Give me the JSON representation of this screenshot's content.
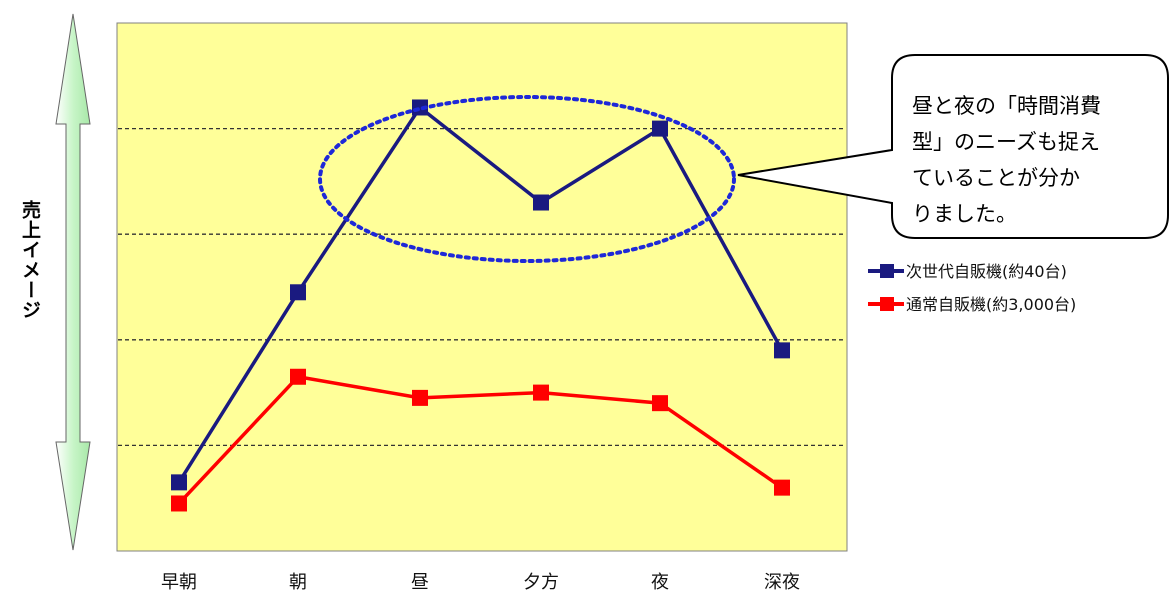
{
  "chart_data": {
    "type": "line",
    "categories": [
      "早朝",
      "朝",
      "昼",
      "夕方",
      "夜",
      "深夜"
    ],
    "series": [
      {
        "name": "次世代自販機(約40台)",
        "color": "#1a1a80",
        "values": [
          1.3,
          4.9,
          8.4,
          6.6,
          8.0,
          3.8
        ]
      },
      {
        "name": "通常自販機(約3,000台)",
        "color": "#ff0000",
        "values": [
          0.9,
          3.3,
          2.9,
          3.0,
          2.8,
          1.2
        ]
      }
    ],
    "ylabel": "売上イメージ",
    "ylim": [
      0,
      10
    ],
    "grid": true,
    "plot_background": "#ffff99",
    "legend_position": "right",
    "annotation": {
      "lines": [
        "昼と夜の「時間消費",
        "型」のニーズも捉え",
        "ていることが分か",
        "りました。"
      ],
      "highlight_categories": [
        "昼",
        "夕方",
        "夜"
      ]
    }
  }
}
